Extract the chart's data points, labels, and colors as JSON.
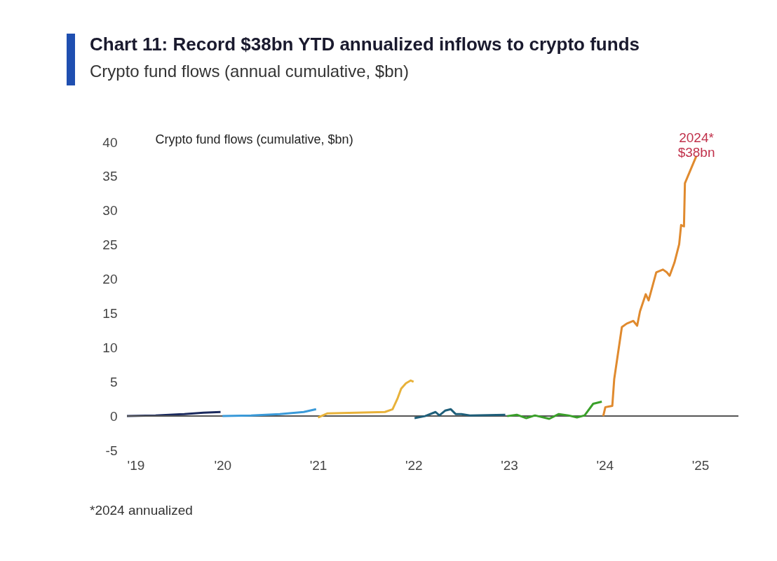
{
  "chart_data": {
    "type": "line",
    "title": "Chart 11: Record $38bn YTD annualized inflows to crypto funds",
    "subtitle": "Crypto fund flows (annual cumulative, $bn)",
    "ylabel": "Crypto fund flows (cumulative, $bn)",
    "xlim": [
      2019,
      2025.4
    ],
    "ylim": [
      -5,
      40
    ],
    "xticks": [
      {
        "value": 2019,
        "label": "'19"
      },
      {
        "value": 2020,
        "label": "'20"
      },
      {
        "value": 2021,
        "label": "'21"
      },
      {
        "value": 2022,
        "label": "'22"
      },
      {
        "value": 2023,
        "label": "'23"
      },
      {
        "value": 2024,
        "label": "'24"
      },
      {
        "value": 2025,
        "label": "'25"
      }
    ],
    "yticks": [
      -5,
      0,
      5,
      10,
      15,
      20,
      25,
      30,
      35,
      40
    ],
    "grid": false,
    "series": [
      {
        "color": "#1b2a5e",
        "x": [
          2019.0,
          2019.3,
          2019.6,
          2019.8,
          2019.98
        ],
        "values": [
          0,
          0.1,
          0.3,
          0.5,
          0.6
        ]
      },
      {
        "color": "#3a9ad9",
        "x": [
          2020.0,
          2020.3,
          2020.6,
          2020.85,
          2020.98
        ],
        "values": [
          0,
          0.1,
          0.3,
          0.6,
          1.0
        ]
      },
      {
        "color": "#e8b23a",
        "x": [
          2021.0,
          2021.1,
          2021.4,
          2021.7,
          2021.78,
          2021.83,
          2021.87,
          2021.92,
          2021.97,
          2022.0
        ],
        "values": [
          -0.2,
          0.4,
          0.5,
          0.6,
          1.0,
          2.5,
          4.0,
          4.8,
          5.2,
          5.0
        ]
      },
      {
        "color": "#1f5f7a",
        "x": [
          2022.01,
          2022.12,
          2022.23,
          2022.27,
          2022.33,
          2022.39,
          2022.44,
          2022.5,
          2022.59,
          2022.96
        ],
        "values": [
          -0.3,
          0,
          0.6,
          0.1,
          0.8,
          1.0,
          0.3,
          0.3,
          0.1,
          0.2
        ]
      },
      {
        "color": "#3aa02a",
        "x": [
          2022.98,
          2023.08,
          2023.18,
          2023.27,
          2023.42,
          2023.52,
          2023.62,
          2023.71,
          2023.79,
          2023.88,
          2023.97
        ],
        "values": [
          0,
          0.2,
          -0.3,
          0.1,
          -0.4,
          0.3,
          0.1,
          -0.2,
          0.1,
          1.8,
          2.1
        ]
      },
      {
        "color": "#e08a2e",
        "x": [
          2023.985,
          2024.007,
          2024.08,
          2024.1,
          2024.18,
          2024.23,
          2024.3,
          2024.34,
          2024.37,
          2024.43,
          2024.46,
          2024.54,
          2024.61,
          2024.65,
          2024.68,
          2024.73,
          2024.78,
          2024.8,
          2024.83,
          2024.84,
          2024.87,
          2024.96
        ],
        "values": [
          0,
          1.3,
          1.5,
          5.4,
          13,
          13.5,
          13.9,
          13.2,
          15.3,
          17.8,
          16.9,
          21,
          21.4,
          21,
          20.5,
          22.4,
          25.1,
          27.9,
          27.7,
          34,
          35,
          38
        ]
      }
    ],
    "ref_lines": [
      {
        "axis": "y",
        "value": 0,
        "color": "#555555"
      }
    ],
    "annotations": [
      {
        "text": "2024* $38bn",
        "x": 2024.96,
        "y": 38
      },
      "*2024 annualized"
    ]
  }
}
